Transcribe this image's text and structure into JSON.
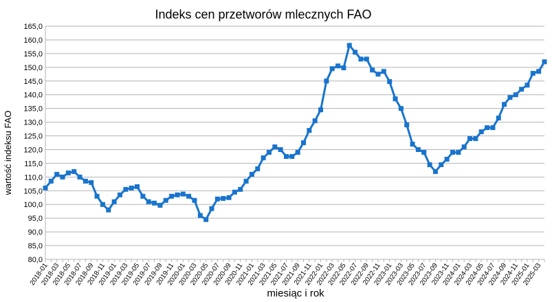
{
  "chart_data": {
    "type": "line",
    "title": "Indeks cen przetworów mlecznych FAO",
    "x_label": "miesiąc i rok",
    "y_label": "wartość indeksu FAO",
    "color": "#1874cd",
    "grid": true,
    "categories": [
      "2018-01",
      null,
      "2018-03",
      null,
      "2018-05",
      null,
      "2018-07",
      null,
      "2018-09",
      null,
      "2018-11",
      null,
      "2019-01",
      null,
      "2019-03",
      null,
      "2019-05",
      null,
      "2019-07",
      null,
      "2019-09",
      null,
      "2019-11",
      null,
      "2020-01",
      null,
      "2020-03",
      null,
      "2020-05",
      null,
      "2020-07",
      null,
      "2020-09",
      null,
      "2020-11",
      null,
      "2021-01",
      null,
      "2021-03",
      null,
      "2021-05",
      null,
      "2021-07",
      null,
      "2021-09",
      null,
      "2021-11",
      null,
      "2022-01",
      null,
      "2022-03",
      null,
      "2022-05",
      null,
      "2022-07",
      null,
      "2022-09",
      null,
      "2022-11",
      null,
      "2023-01",
      null,
      "2023-03",
      null,
      "2023-05",
      null,
      "2023-07",
      null,
      "2023-09",
      null,
      "2023-11",
      null,
      "2024-01",
      null,
      "2024-03",
      null,
      "2024-05",
      null,
      "2024-07",
      null,
      "2024-09",
      null,
      "2024-11",
      null,
      "2025-01",
      null,
      "2025-03",
      null
    ],
    "values": [
      106,
      108.5,
      111,
      110,
      111.5,
      112,
      110,
      108.5,
      108,
      103,
      100,
      98,
      101,
      103.5,
      105.5,
      106,
      106.5,
      103,
      101,
      100.5,
      99.7,
      101.5,
      103,
      103.5,
      103.8,
      103,
      101.5,
      96,
      94.5,
      98.5,
      102,
      102.2,
      102.5,
      104.5,
      105.5,
      108.5,
      111,
      113,
      117,
      119,
      121,
      120,
      117.5,
      117.5,
      119,
      122.5,
      127,
      130.5,
      134.5,
      145,
      149.5,
      150.5,
      149.8,
      158,
      155.5,
      153,
      153,
      149,
      147.5,
      148.5,
      144.8,
      138.5,
      135,
      129,
      122,
      120,
      119,
      114.5,
      112,
      114.5,
      116.5,
      119,
      119,
      121,
      124,
      124,
      126.5,
      128,
      128,
      131.5,
      136.5,
      139,
      140,
      142,
      143.5,
      147.8,
      148.5,
      152
    ],
    "ylim": [
      80,
      165
    ],
    "yticks": [
      {
        "value": 80,
        "label": "80,0"
      },
      {
        "value": 85,
        "label": "85,0"
      },
      {
        "value": 90,
        "label": "90,0"
      },
      {
        "value": 95,
        "label": "95,0"
      },
      {
        "value": 100,
        "label": "100,0"
      },
      {
        "value": 105,
        "label": "105,0"
      },
      {
        "value": 110,
        "label": "110,0"
      },
      {
        "value": 115,
        "label": "115,0"
      },
      {
        "value": 120,
        "label": "120,0"
      },
      {
        "value": 125,
        "label": "125,0"
      },
      {
        "value": 130,
        "label": "130,0"
      },
      {
        "value": 135,
        "label": "135,0"
      },
      {
        "value": 140,
        "label": "140,0"
      },
      {
        "value": 145,
        "label": "145,0"
      },
      {
        "value": 150,
        "label": "150,0"
      },
      {
        "value": 155,
        "label": "155,0"
      },
      {
        "value": 160,
        "label": "160,0"
      },
      {
        "value": 165,
        "label": "165,0"
      }
    ]
  }
}
